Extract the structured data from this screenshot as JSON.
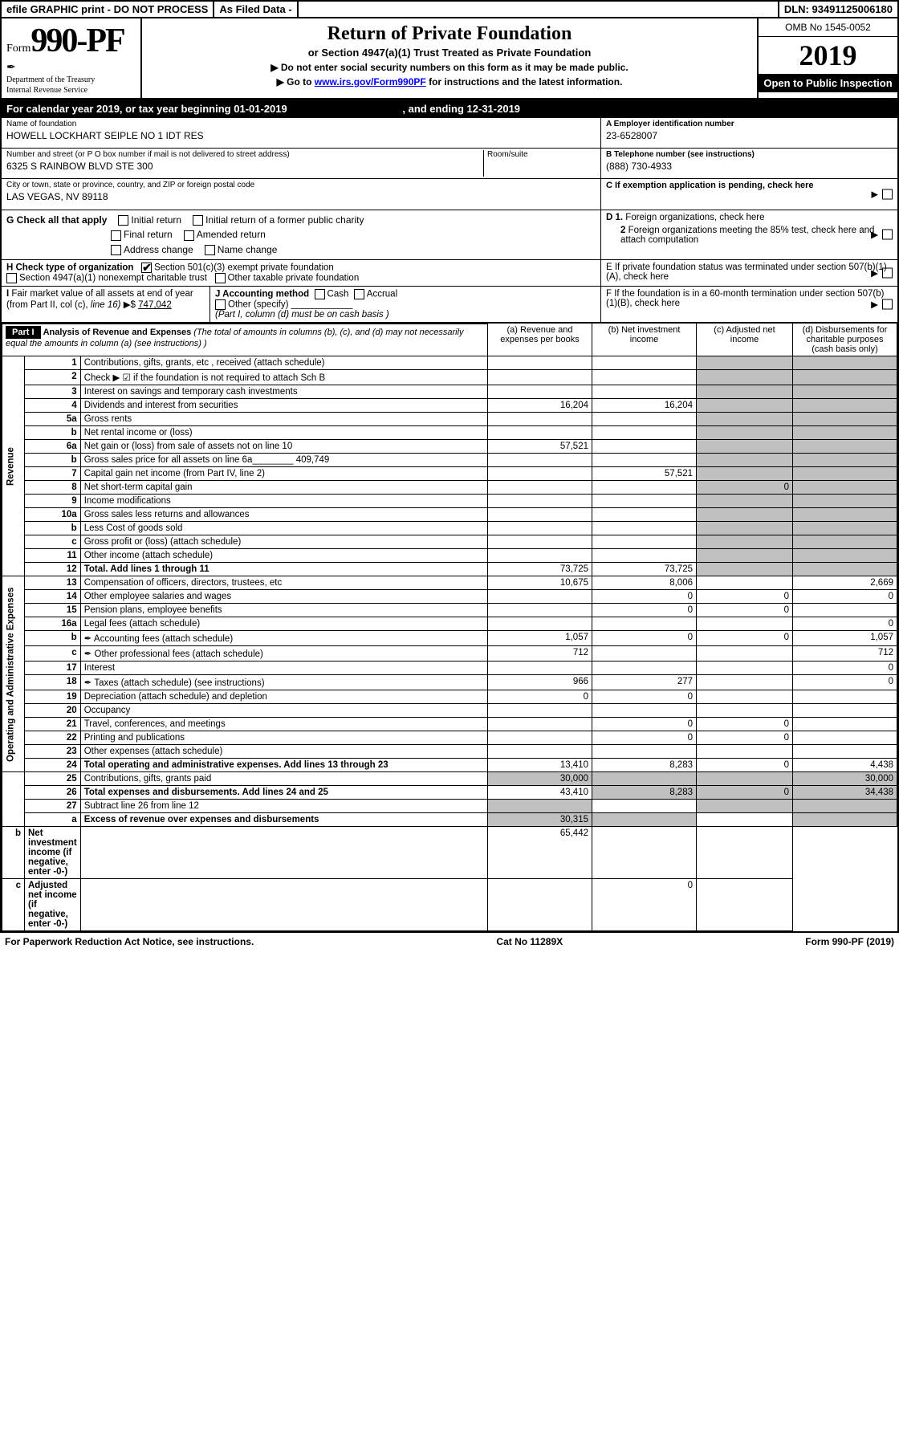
{
  "topbar": {
    "efile": "efile GRAPHIC print - DO NOT PROCESS",
    "asfiled": "As Filed Data -",
    "dln": "DLN: 93491125006180"
  },
  "header": {
    "form_prefix": "Form",
    "form_number": "990-PF",
    "dept1": "Department of the Treasury",
    "dept2": "Internal Revenue Service",
    "title": "Return of Private Foundation",
    "subtitle": "or Section 4947(a)(1) Trust Treated as Private Foundation",
    "note1": "▶ Do not enter social security numbers on this form as it may be made public.",
    "note2_pre": "▶ Go to ",
    "note2_link": "www.irs.gov/Form990PF",
    "note2_post": " for instructions and the latest information.",
    "omb": "OMB No 1545-0052",
    "year": "2019",
    "open": "Open to Public Inspection"
  },
  "cal": {
    "pre": "For calendar year 2019, or tax year beginning ",
    "begin": "01-01-2019",
    "mid": ", and ending ",
    "end": "12-31-2019"
  },
  "id": {
    "name_lbl": "Name of foundation",
    "name": "HOWELL LOCKHART SEIPLE NO 1 IDT RES",
    "addr_lbl": "Number and street (or P O  box number if mail is not delivered to street address)",
    "addr": "6325 S RAINBOW BLVD STE 300",
    "room_lbl": "Room/suite",
    "city_lbl": "City or town, state or province, country, and ZIP or foreign postal code",
    "city": "LAS VEGAS, NV  89118",
    "ein_lbl": "A Employer identification number",
    "ein": "23-6528007",
    "tel_lbl": "B Telephone number (see instructions)",
    "tel": "(888) 730-4933",
    "c_lbl": "C If exemption application is pending, check here"
  },
  "checks": {
    "G": "G Check all that apply",
    "g1": "Initial return",
    "g2": "Initial return of a former public charity",
    "g3": "Final return",
    "g4": "Amended return",
    "g5": "Address change",
    "g6": "Name change",
    "H": "H Check type of organization",
    "h1": "Section 501(c)(3) exempt private foundation",
    "h2": "Section 4947(a)(1) nonexempt charitable trust",
    "h3": "Other taxable private foundation",
    "I": "I Fair market value of all assets at end of year (from Part II, col  (c), line 16) ▶$ ",
    "I_val": "747,042",
    "J": "J Accounting method",
    "j1": "Cash",
    "j2": "Accrual",
    "j3": "Other (specify)",
    "j4": "(Part I, column (d) must be on cash basis )",
    "D1": "D 1. Foreign organizations, check here",
    "D2": "2 Foreign organizations meeting the 85% test, check here and attach computation",
    "E": "E  If private foundation status was terminated under section 507(b)(1)(A), check here",
    "F": "F  If the foundation is in a 60-month termination under section 507(b)(1)(B), check here"
  },
  "part1": {
    "label": "Part I",
    "title": "Analysis of Revenue and Expenses",
    "title_note": "(The total of amounts in columns (b), (c), and (d) may not necessarily equal the amounts in column (a) (see instructions) )",
    "cols": {
      "a": "(a) Revenue and expenses per books",
      "b": "(b) Net investment income",
      "c": "(c) Adjusted net income",
      "d": "(d) Disbursements for charitable purposes (cash basis only)"
    },
    "side_rev": "Revenue",
    "side_exp": "Operating and Administrative Expenses"
  },
  "rows": [
    {
      "n": "1",
      "d": "Contributions, gifts, grants, etc , received (attach schedule)"
    },
    {
      "n": "2",
      "d": "Check ▶ ☑ if the foundation is not required to attach Sch B"
    },
    {
      "n": "3",
      "d": "Interest on savings and temporary cash investments"
    },
    {
      "n": "4",
      "d": "Dividends and interest from securities",
      "a": "16,204",
      "b": "16,204"
    },
    {
      "n": "5a",
      "d": "Gross rents"
    },
    {
      "n": "b",
      "d": "Net rental income or (loss)"
    },
    {
      "n": "6a",
      "d": "Net gain or (loss) from sale of assets not on line 10",
      "a": "57,521"
    },
    {
      "n": "b",
      "d": "Gross sales price for all assets on line 6a________  409,749"
    },
    {
      "n": "7",
      "d": "Capital gain net income (from Part IV, line 2)",
      "b": "57,521"
    },
    {
      "n": "8",
      "d": "Net short-term capital gain",
      "c": "0"
    },
    {
      "n": "9",
      "d": "Income modifications"
    },
    {
      "n": "10a",
      "d": "Gross sales less returns and allowances"
    },
    {
      "n": "b",
      "d": "Less  Cost of goods sold"
    },
    {
      "n": "c",
      "d": "Gross profit or (loss) (attach schedule)"
    },
    {
      "n": "11",
      "d": "Other income (attach schedule)"
    },
    {
      "n": "12",
      "d": "Total. Add lines 1 through 11",
      "bold": true,
      "a": "73,725",
      "b": "73,725"
    },
    {
      "n": "13",
      "d": "Compensation of officers, directors, trustees, etc",
      "a": "10,675",
      "b": "8,006",
      "dd": "2,669"
    },
    {
      "n": "14",
      "d": "Other employee salaries and wages",
      "b": "0",
      "c": "0",
      "dd": "0"
    },
    {
      "n": "15",
      "d": "Pension plans, employee benefits",
      "b": "0",
      "c": "0"
    },
    {
      "n": "16a",
      "d": "Legal fees (attach schedule)",
      "dd": "0"
    },
    {
      "n": "b",
      "d": "Accounting fees (attach schedule)",
      "icon": true,
      "a": "1,057",
      "b": "0",
      "c": "0",
      "dd": "1,057"
    },
    {
      "n": "c",
      "d": "Other professional fees (attach schedule)",
      "icon": true,
      "a": "712",
      "dd": "712"
    },
    {
      "n": "17",
      "d": "Interest",
      "dd": "0"
    },
    {
      "n": "18",
      "d": "Taxes (attach schedule) (see instructions)",
      "icon": true,
      "a": "966",
      "b": "277",
      "dd": "0"
    },
    {
      "n": "19",
      "d": "Depreciation (attach schedule) and depletion",
      "a": "0",
      "b": "0"
    },
    {
      "n": "20",
      "d": "Occupancy"
    },
    {
      "n": "21",
      "d": "Travel, conferences, and meetings",
      "b": "0",
      "c": "0"
    },
    {
      "n": "22",
      "d": "Printing and publications",
      "b": "0",
      "c": "0"
    },
    {
      "n": "23",
      "d": "Other expenses (attach schedule)"
    },
    {
      "n": "24",
      "d": "Total operating and administrative expenses. Add lines 13 through 23",
      "bold": true,
      "a": "13,410",
      "b": "8,283",
      "c": "0",
      "dd": "4,438"
    },
    {
      "n": "25",
      "d": "Contributions, gifts, grants paid",
      "a": "30,000",
      "dd": "30,000"
    },
    {
      "n": "26",
      "d": "Total expenses and disbursements. Add lines 24 and 25",
      "bold": true,
      "a": "43,410",
      "b": "8,283",
      "c": "0",
      "dd": "34,438"
    },
    {
      "n": "27",
      "d": "Subtract line 26 from line 12"
    },
    {
      "n": "a",
      "d": "Excess of revenue over expenses and disbursements",
      "bold": true,
      "a": "30,315"
    },
    {
      "n": "b",
      "d": "Net investment income (if negative, enter -0-)",
      "bold": true,
      "b": "65,442"
    },
    {
      "n": "c",
      "d": "Adjusted net income (if negative, enter -0-)",
      "bold": true,
      "c": "0"
    }
  ],
  "footer": {
    "left": "For Paperwork Reduction Act Notice, see instructions.",
    "mid": "Cat No 11289X",
    "right": "Form 990-PF (2019)"
  }
}
